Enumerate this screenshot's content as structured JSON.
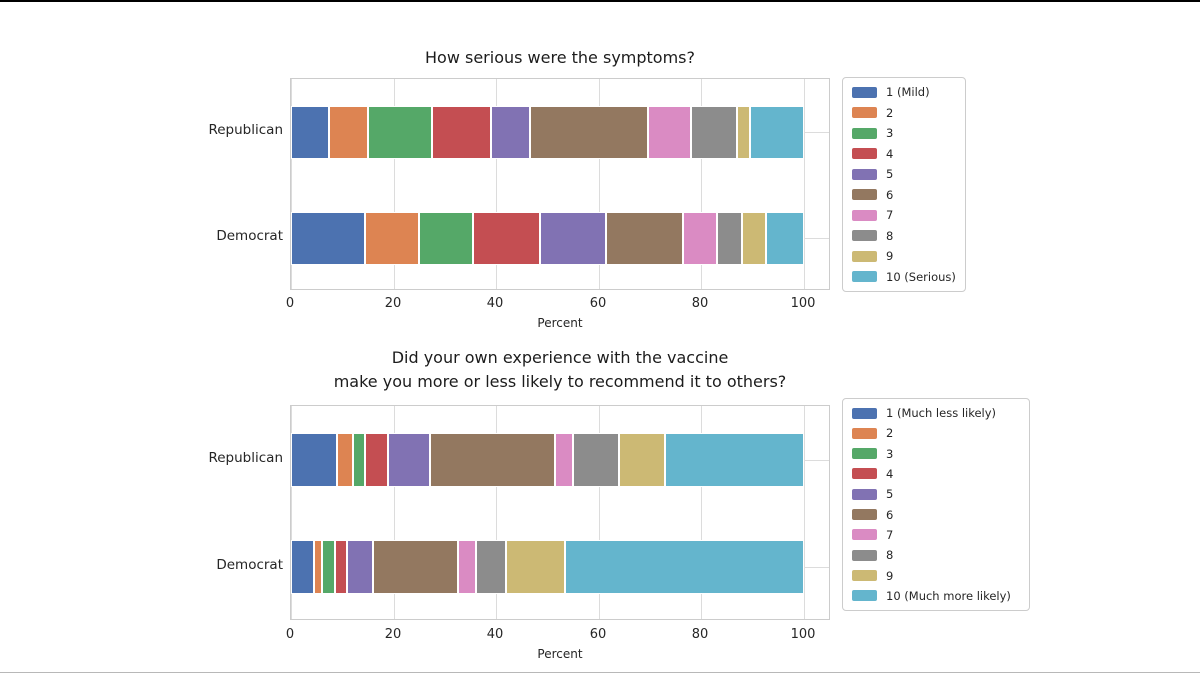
{
  "page": {
    "background": "#ffffff",
    "top_rule_color": "#000000",
    "bottom_rule_color": "#b8b8b8",
    "grid_color": "#dcdcdc",
    "spine_color": "#cccccc",
    "text_color": "#262626"
  },
  "chart_data": [
    {
      "type": "bar",
      "subtype": "horizontal-stacked",
      "title_lines": [
        "How serious were the symptoms?"
      ],
      "xlabel": "Percent",
      "x_ticks": [
        0,
        20,
        40,
        60,
        80,
        100
      ],
      "xlim": [
        0,
        105
      ],
      "grid": true,
      "legend_position": "right",
      "categories": [
        "Republican",
        "Democrat"
      ],
      "series": [
        {
          "name": "1 (Mild)",
          "color": "#4c72b0",
          "values": [
            7.5,
            14.5
          ]
        },
        {
          "name": "2",
          "color": "#dd8452",
          "values": [
            7.5,
            10.5
          ]
        },
        {
          "name": "3",
          "color": "#55a868",
          "values": [
            12.5,
            10.5
          ]
        },
        {
          "name": "4",
          "color": "#c44e52",
          "values": [
            11.5,
            13
          ]
        },
        {
          "name": "5",
          "color": "#8172b3",
          "values": [
            7.5,
            13
          ]
        },
        {
          "name": "6",
          "color": "#937860",
          "values": [
            23,
            15
          ]
        },
        {
          "name": "7",
          "color": "#da8bc3",
          "values": [
            8.5,
            6.5
          ]
        },
        {
          "name": "8",
          "color": "#8c8c8c",
          "values": [
            9,
            5
          ]
        },
        {
          "name": "9",
          "color": "#ccb974",
          "values": [
            2.5,
            4.5
          ]
        },
        {
          "name": "10 (Serious)",
          "color": "#64b5cd",
          "values": [
            10.5,
            7.5
          ]
        }
      ]
    },
    {
      "type": "bar",
      "subtype": "horizontal-stacked",
      "title_lines": [
        "Did your own experience with the vaccine",
        "make you more or less likely to recommend it to others?"
      ],
      "xlabel": "Percent",
      "x_ticks": [
        0,
        20,
        40,
        60,
        80,
        100
      ],
      "xlim": [
        0,
        105
      ],
      "grid": true,
      "legend_position": "right",
      "categories": [
        "Republican",
        "Democrat"
      ],
      "series": [
        {
          "name": "1 (Much less likely)",
          "color": "#4c72b0",
          "values": [
            9,
            4.5
          ]
        },
        {
          "name": "2",
          "color": "#dd8452",
          "values": [
            3,
            1.5
          ]
        },
        {
          "name": "3",
          "color": "#55a868",
          "values": [
            2.5,
            2.5
          ]
        },
        {
          "name": "4",
          "color": "#c44e52",
          "values": [
            4.5,
            2.5
          ]
        },
        {
          "name": "5",
          "color": "#8172b3",
          "values": [
            8,
            5
          ]
        },
        {
          "name": "6",
          "color": "#937860",
          "values": [
            24.5,
            16.5
          ]
        },
        {
          "name": "7",
          "color": "#da8bc3",
          "values": [
            3.5,
            3.5
          ]
        },
        {
          "name": "8",
          "color": "#8c8c8c",
          "values": [
            9,
            6
          ]
        },
        {
          "name": "9",
          "color": "#ccb974",
          "values": [
            9,
            11.5
          ]
        },
        {
          "name": "10 (Much more likely)",
          "color": "#64b5cd",
          "values": [
            27,
            46.5
          ]
        }
      ]
    }
  ]
}
